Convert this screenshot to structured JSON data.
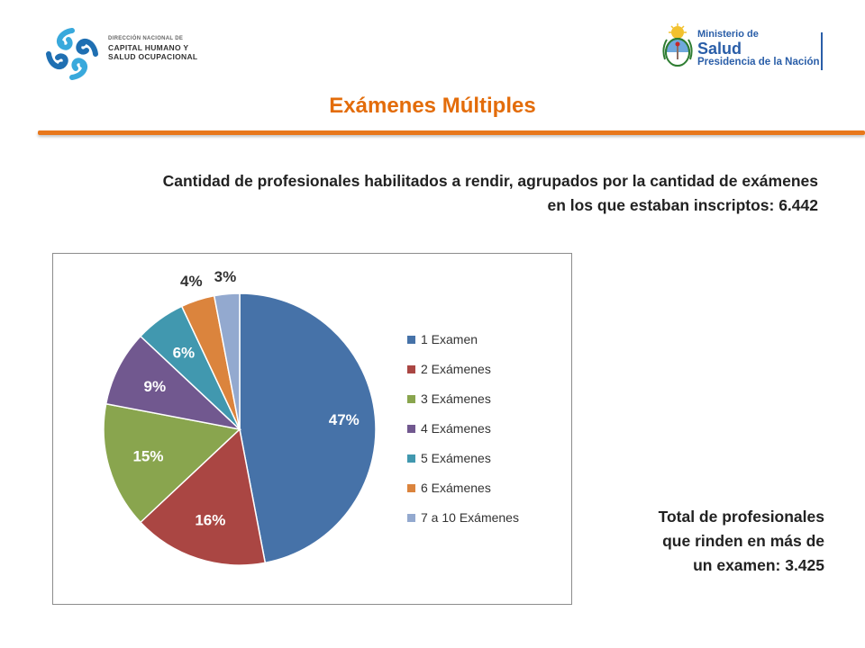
{
  "header": {
    "left_logo": {
      "line1": "DIRECCIÓN NACIONAL DE",
      "line2": "CAPITAL HUMANO Y",
      "line3": "SALUD OCUPACIONAL",
      "icon": "blue-swirl-icon"
    },
    "right_logo": {
      "line1": "Ministerio de",
      "line2": "Salud",
      "line3": "Presidencia de la Nación",
      "icon": "argentina-coat-of-arms-icon"
    }
  },
  "title": "Exámenes Múltiples",
  "subtitle_line1": "Cantidad de profesionales habilitados a rendir, agrupados por la cantidad de exámenes",
  "subtitle_line2": "en los que estaban inscriptos: 6.442",
  "total_line1": "Total de profesionales",
  "total_line2": "que rinden en más de",
  "total_line3": "un examen: 3.425",
  "colors": {
    "accent": "#e36c0a",
    "rule": "#e8771b",
    "brand_blue": "#2a5ea8"
  },
  "chart_data": {
    "type": "pie",
    "categories": [
      "1 Examen",
      "2 Exámenes",
      "3 Exámenes",
      "4 Exámenes",
      "5 Exámenes",
      "6 Exámenes",
      "7 a 10 Exámenes"
    ],
    "values": [
      47,
      16,
      15,
      9,
      6,
      4,
      3
    ],
    "labels": [
      "47%",
      "16%",
      "15%",
      "9%",
      "6%",
      "4%",
      "3%"
    ],
    "colors": [
      "#4672a8",
      "#aa4643",
      "#89a54e",
      "#71588f",
      "#4198af",
      "#db843d",
      "#93a9cf"
    ],
    "legend_position": "right",
    "start_angle_deg": 0,
    "direction": "clockwise"
  }
}
